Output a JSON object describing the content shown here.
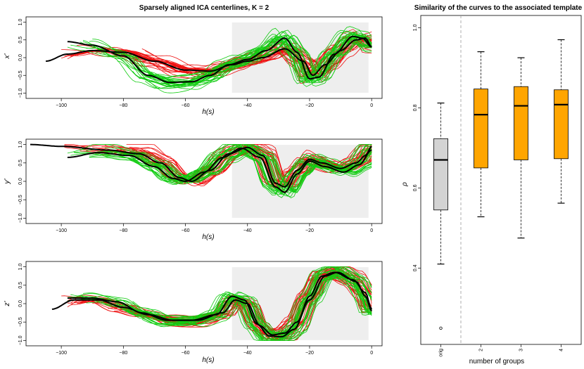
{
  "colors": {
    "red": "#ee1111",
    "green": "#11cc11",
    "black": "#000000",
    "shade": "#eeeeee",
    "box_orig": "#d3d3d3",
    "box_groups": "#ffa500"
  },
  "chart_data": [
    {
      "type": "line",
      "title": "Sparsely aligned ICA centerlines, K = 2",
      "xlabel": "h(s)",
      "ylabel": "x'",
      "xlim": [
        -110,
        2
      ],
      "ylim": [
        -1.05,
        1.05
      ],
      "xticks": [
        -100,
        -80,
        -60,
        -40,
        -20,
        0
      ],
      "yticks": [
        -1.0,
        -0.5,
        0.0,
        0.5,
        1.0
      ],
      "xtick_labels": [
        "−100",
        "−80",
        "−60",
        "−40",
        "−20",
        "0"
      ],
      "ytick_labels": [
        "−1.0",
        "−0.5",
        "0.0",
        "0.5",
        "1.0"
      ],
      "shaded_region": [
        -45,
        -1
      ],
      "template_points": [
        [
          -105,
          -0.1
        ],
        [
          -98,
          0.1
        ],
        [
          -90,
          0.2
        ],
        [
          -80,
          0.15
        ],
        [
          -70,
          -0.1
        ],
        [
          -60,
          -0.35
        ],
        [
          -52,
          -0.38
        ],
        [
          -45,
          -0.2
        ],
        [
          -40,
          -0.1
        ],
        [
          -35,
          0.0
        ],
        [
          -28,
          0.25
        ],
        [
          -22,
          -0.1
        ],
        [
          -19,
          -0.5
        ],
        [
          -15,
          -0.2
        ],
        [
          -10,
          0.2
        ],
        [
          -5,
          0.5
        ],
        [
          -2,
          0.55
        ],
        [
          0,
          0.3
        ]
      ],
      "group_template_points": [
        [
          -98,
          0.45
        ],
        [
          -90,
          0.35
        ],
        [
          -80,
          0.05
        ],
        [
          -72,
          -0.5
        ],
        [
          -65,
          -0.7
        ],
        [
          -58,
          -0.68
        ],
        [
          -52,
          -0.5
        ],
        [
          -46,
          -0.2
        ],
        [
          -40,
          -0.05
        ],
        [
          -34,
          0.2
        ],
        [
          -28,
          0.55
        ],
        [
          -24,
          0.15
        ],
        [
          -20,
          -0.6
        ],
        [
          -17,
          -0.55
        ],
        [
          -12,
          0.1
        ],
        [
          -6,
          0.6
        ],
        [
          -3,
          0.55
        ],
        [
          0,
          0.3
        ]
      ],
      "curve_count_per_group": 28
    },
    {
      "type": "line",
      "xlabel": "h(s)",
      "ylabel": "y'",
      "xlim": [
        -110,
        2
      ],
      "ylim": [
        -1.05,
        1.05
      ],
      "xticks": [
        -100,
        -80,
        -60,
        -40,
        -20,
        0
      ],
      "yticks": [
        -1.0,
        -0.5,
        0.0,
        0.5,
        1.0
      ],
      "xtick_labels": [
        "−100",
        "−80",
        "−60",
        "−40",
        "−20",
        "0"
      ],
      "ytick_labels": [
        "−1.0",
        "−0.5",
        "0.0",
        "0.5",
        "1.0"
      ],
      "shaded_region": [
        -45,
        -1
      ],
      "template_points": [
        [
          -110,
          1.0
        ],
        [
          -100,
          0.95
        ],
        [
          -85,
          0.85
        ],
        [
          -75,
          0.75
        ],
        [
          -68,
          0.5
        ],
        [
          -62,
          0.1
        ],
        [
          -58,
          0.0
        ],
        [
          -52,
          0.3
        ],
        [
          -46,
          0.75
        ],
        [
          -40,
          0.92
        ],
        [
          -35,
          0.7
        ],
        [
          -31,
          -0.05
        ],
        [
          -28,
          -0.15
        ],
        [
          -24,
          0.3
        ],
        [
          -20,
          0.6
        ],
        [
          -16,
          0.5
        ],
        [
          -10,
          0.35
        ],
        [
          -5,
          0.5
        ],
        [
          -2,
          0.7
        ],
        [
          0,
          0.95
        ]
      ],
      "group_template_points": [
        [
          -98,
          0.65
        ],
        [
          -88,
          0.78
        ],
        [
          -78,
          0.7
        ],
        [
          -70,
          0.4
        ],
        [
          -64,
          0.08
        ],
        [
          -60,
          0.0
        ],
        [
          -54,
          0.25
        ],
        [
          -48,
          0.65
        ],
        [
          -42,
          0.9
        ],
        [
          -36,
          0.65
        ],
        [
          -31,
          -0.15
        ],
        [
          -28,
          -0.3
        ],
        [
          -24,
          0.2
        ],
        [
          -20,
          0.55
        ],
        [
          -15,
          0.4
        ],
        [
          -9,
          0.25
        ],
        [
          -4,
          0.45
        ],
        [
          0,
          0.85
        ]
      ],
      "curve_count_per_group": 28
    },
    {
      "type": "line",
      "xlabel": "h(s)",
      "ylabel": "z'",
      "xlim": [
        -110,
        2
      ],
      "ylim": [
        -1.05,
        1.05
      ],
      "xticks": [
        -100,
        -80,
        -60,
        -40,
        -20,
        0
      ],
      "yticks": [
        -1.0,
        -0.5,
        0.0,
        0.5,
        1.0
      ],
      "xtick_labels": [
        "−100",
        "−80",
        "−60",
        "−40",
        "−20",
        "0"
      ],
      "ytick_labels": [
        "−1.0",
        "−0.5",
        "0.0",
        "0.5",
        "1.0"
      ],
      "shaded_region": [
        -45,
        -1
      ],
      "template_points": [
        [
          -103,
          -0.15
        ],
        [
          -96,
          0.1
        ],
        [
          -88,
          0.1
        ],
        [
          -80,
          -0.1
        ],
        [
          -72,
          -0.3
        ],
        [
          -64,
          -0.45
        ],
        [
          -56,
          -0.45
        ],
        [
          -48,
          -0.25
        ],
        [
          -44,
          0.1
        ],
        [
          -40,
          0.0
        ],
        [
          -36,
          -0.6
        ],
        [
          -32,
          -0.85
        ],
        [
          -28,
          -0.8
        ],
        [
          -24,
          -0.5
        ],
        [
          -20,
          0.2
        ],
        [
          -16,
          0.75
        ],
        [
          -12,
          0.85
        ],
        [
          -6,
          0.65
        ],
        [
          -2,
          0.3
        ],
        [
          0,
          -0.15
        ]
      ],
      "group_template_points": [
        [
          -98,
          0.15
        ],
        [
          -90,
          0.15
        ],
        [
          -82,
          0.05
        ],
        [
          -74,
          -0.25
        ],
        [
          -66,
          -0.45
        ],
        [
          -58,
          -0.45
        ],
        [
          -50,
          -0.3
        ],
        [
          -45,
          0.2
        ],
        [
          -41,
          0.1
        ],
        [
          -37,
          -0.55
        ],
        [
          -33,
          -0.88
        ],
        [
          -29,
          -0.9
        ],
        [
          -25,
          -0.7
        ],
        [
          -20,
          0.1
        ],
        [
          -15,
          0.75
        ],
        [
          -11,
          0.85
        ],
        [
          -5,
          0.6
        ],
        [
          -2,
          0.2
        ],
        [
          0,
          -0.2
        ]
      ],
      "curve_count_per_group": 28
    },
    {
      "type": "box",
      "title": "Similarity of the curves to the associated template",
      "xlabel": "number of groups",
      "ylabel": "ρ",
      "categories": [
        "orig",
        "2",
        "3",
        "4"
      ],
      "ylim": [
        0.22,
        1.02
      ],
      "yticks": [
        0.4,
        0.6,
        0.8,
        1.0
      ],
      "ytick_labels": [
        "0.4",
        "0.6",
        "0.8",
        "1.0"
      ],
      "separator_after_category": 0,
      "boxes": [
        {
          "category": "orig",
          "whisker_low": 0.41,
          "q1": 0.545,
          "median": 0.67,
          "q3": 0.723,
          "whisker_high": 0.812,
          "outliers": [
            0.25
          ],
          "color": "#d3d3d3"
        },
        {
          "category": "2",
          "whisker_low": 0.528,
          "q1": 0.65,
          "median": 0.783,
          "q3": 0.847,
          "whisker_high": 0.94,
          "outliers": [],
          "color": "#ffa500"
        },
        {
          "category": "3",
          "whisker_low": 0.475,
          "q1": 0.67,
          "median": 0.805,
          "q3": 0.853,
          "whisker_high": 0.925,
          "outliers": [],
          "color": "#ffa500"
        },
        {
          "category": "4",
          "whisker_low": 0.562,
          "q1": 0.673,
          "median": 0.808,
          "q3": 0.845,
          "whisker_high": 0.97,
          "outliers": [],
          "color": "#ffa500"
        }
      ]
    }
  ]
}
